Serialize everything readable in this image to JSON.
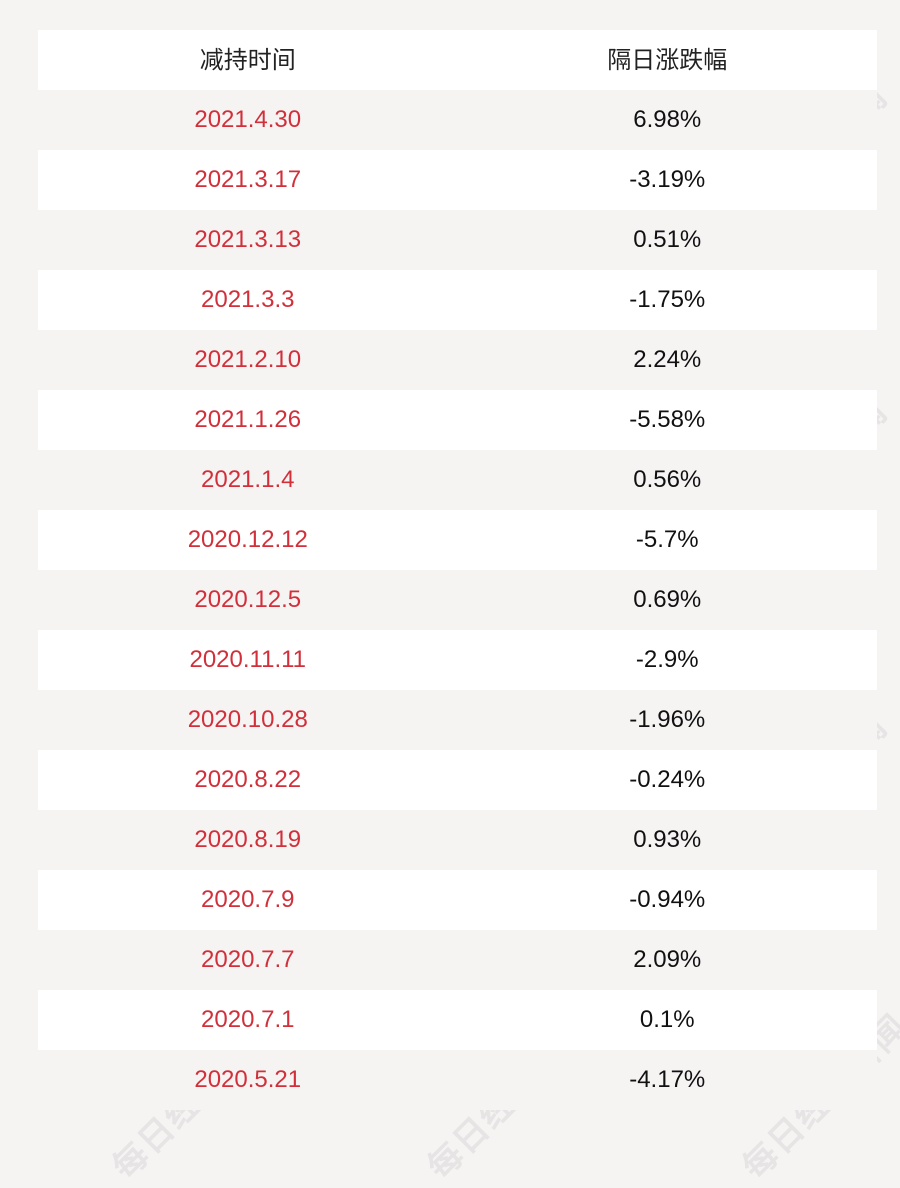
{
  "header": {
    "col_date": "减持时间",
    "col_change": "隔日涨跌幅"
  },
  "rows": [
    {
      "date": "2021.4.30",
      "change": "6.98%"
    },
    {
      "date": "2021.3.17",
      "change": "-3.19%"
    },
    {
      "date": "2021.3.13",
      "change": "0.51%"
    },
    {
      "date": "2021.3.3",
      "change": "-1.75%"
    },
    {
      "date": "2021.2.10",
      "change": "2.24%"
    },
    {
      "date": "2021.1.26",
      "change": "-5.58%"
    },
    {
      "date": "2021.1.4",
      "change": "0.56%"
    },
    {
      "date": "2020.12.12",
      "change": "-5.7%"
    },
    {
      "date": "2020.12.5",
      "change": "0.69%"
    },
    {
      "date": "2020.11.11",
      "change": "-2.9%"
    },
    {
      "date": "2020.10.28",
      "change": "-1.96%"
    },
    {
      "date": "2020.8.22",
      "change": "-0.24%"
    },
    {
      "date": "2020.8.19",
      "change": "0.93%"
    },
    {
      "date": "2020.7.9",
      "change": "-0.94%"
    },
    {
      "date": "2020.7.7",
      "change": "2.09%"
    },
    {
      "date": "2020.7.1",
      "change": "0.1%"
    },
    {
      "date": "2020.5.21",
      "change": "-4.17%"
    }
  ],
  "watermark": "每日经济新闻",
  "colors": {
    "date_text": "#d1303a",
    "value_text": "#111111",
    "row_white": "#ffffff",
    "row_tinted": "#f6f3f3"
  }
}
